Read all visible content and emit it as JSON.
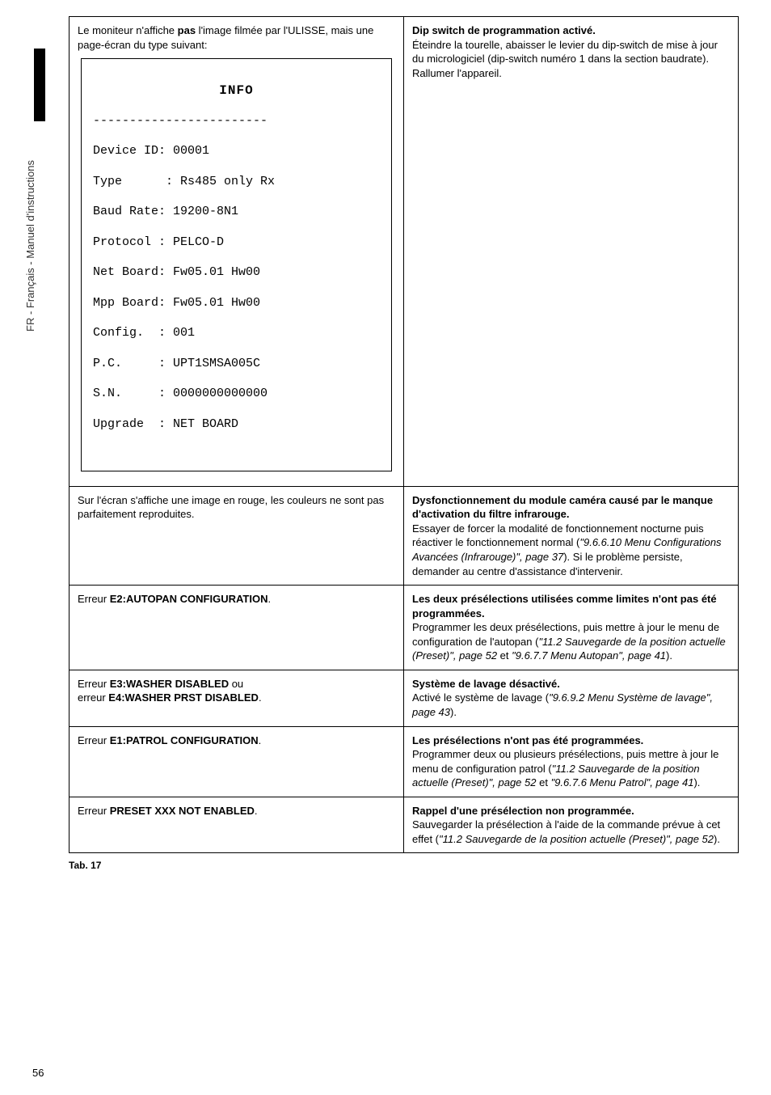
{
  "sidebar": {
    "label": "FR - Français - Manuel d'instructions"
  },
  "row1": {
    "left_intro_1": "Le moniteur n'affiche ",
    "left_intro_bold": "pas",
    "left_intro_2": " l'image filmée par l'ULISSE, mais une page-écran du type suivant:",
    "info_title": "INFO",
    "info_dash": "------------------------",
    "info_lines": [
      "Device ID: 00001",
      "Type      : Rs485 only Rx",
      "Baud Rate: 19200-8N1",
      "Protocol : PELCO-D",
      "Net Board: Fw05.01 Hw00",
      "Mpp Board: Fw05.01 Hw00",
      "Config.  : 001",
      "P.C.     : UPT1SMSA005C",
      "S.N.     : 0000000000000",
      "Upgrade  : NET BOARD"
    ],
    "right_title": "Dip switch de programmation activé.",
    "right_body": "Éteindre la tourelle, abaisser le levier du dip-switch de mise à jour du micrologiciel (dip-switch numéro 1 dans la section baudrate). Rallumer l'appareil."
  },
  "row2": {
    "left": "Sur l'écran s'affiche une image en rouge, les couleurs ne sont pas parfaitement reproduites.",
    "right_title": "Dysfonctionnement du module caméra causé par le manque d'activation du filtre infrarouge.",
    "right_body_1": "Essayer de forcer la modalité de fonctionnement nocturne puis réactiver le fonctionnement normal (",
    "right_ref": "\"9.6.6.10 Menu Configurations Avancées (Infrarouge)\", page 37",
    "right_body_2": "). Si le problème persiste, demander au centre d'assistance d'intervenir."
  },
  "row3": {
    "left_1": "Erreur ",
    "left_bold": "E2:AUTOPAN CONFIGURATION",
    "left_2": ".",
    "right_title": "Les deux présélections utilisées comme limites n'ont pas été programmées.",
    "right_body_1": "Programmer les deux présélections, puis mettre à jour le menu de configuration de l'autopan (",
    "right_ref1": "\"11.2 Sauvegarde de la position actuelle (Preset)\", page 52",
    "right_body_mid": " et ",
    "right_ref2": "\"9.6.7.7 Menu Autopan\", page 41",
    "right_body_2": ")."
  },
  "row4": {
    "left_1": "Erreur ",
    "left_bold1": "E3:WASHER DISABLED",
    "left_mid": " ou",
    "left_2": "erreur ",
    "left_bold2": "E4:WASHER PRST DISABLED",
    "left_3": ".",
    "right_title": "Système de lavage désactivé.",
    "right_body_1": "Activé le système de lavage (",
    "right_ref": "\"9.6.9.2 Menu Système de lavage\", page 43",
    "right_body_2": ")."
  },
  "row5": {
    "left_1": "Erreur ",
    "left_bold": "E1:PATROL CONFIGURATION",
    "left_2": ".",
    "right_title": "Les présélections n'ont pas été programmées.",
    "right_body_1": "Programmer deux ou plusieurs présélections, puis mettre à jour le menu de configuration patrol (",
    "right_ref1": "\"11.2 Sauvegarde de la position actuelle (Preset)\", page 52",
    "right_body_mid": " et ",
    "right_ref2": "\"9.6.7.6 Menu Patrol\", page 41",
    "right_body_2": ")."
  },
  "row6": {
    "left_1": "Erreur ",
    "left_bold": "PRESET XXX NOT ENABLED",
    "left_2": ".",
    "right_title": "Rappel d'une présélection non programmée.",
    "right_body_1": "Sauvegarder la présélection à l'aide de la commande prévue à cet effet (",
    "right_ref": "\"11.2 Sauvegarde de la position actuelle (Preset)\", page 52",
    "right_body_2": ")."
  },
  "tab_label": "Tab. 17",
  "page_number": "56"
}
